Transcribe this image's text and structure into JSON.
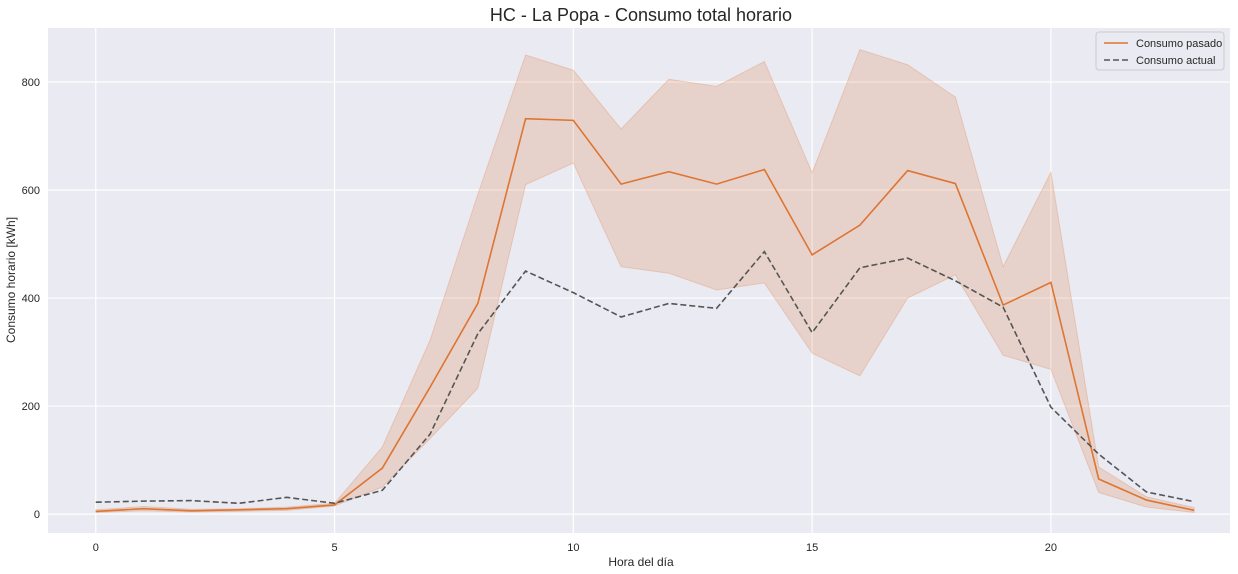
{
  "chart_data": {
    "type": "line",
    "title": "HC - La Popa - Consumo total horario",
    "xlabel": "Hora del día",
    "ylabel": "Consumo horario [kWh]",
    "xlim": [
      -1,
      23.75
    ],
    "ylim": [
      -35,
      900
    ],
    "xticks": [
      0,
      5,
      10,
      15,
      20
    ],
    "yticks": [
      0,
      200,
      400,
      600,
      800
    ],
    "grid": true,
    "legend_position": "top-right",
    "x": [
      0,
      1,
      2,
      3,
      4,
      5,
      6,
      7,
      8,
      9,
      10,
      11,
      12,
      13,
      14,
      15,
      16,
      17,
      18,
      19,
      20,
      21,
      22,
      23
    ],
    "series": [
      {
        "name": "Consumo pasado",
        "style": "solid",
        "color": "#dd7533",
        "values": [
          5,
          10,
          6,
          8,
          10,
          17,
          85,
          235,
          390,
          732,
          729,
          611,
          634,
          611,
          638,
          480,
          535,
          636,
          612,
          387,
          429,
          65,
          26,
          7
        ],
        "band_low": [
          3,
          6,
          4,
          5,
          7,
          15,
          50,
          140,
          233,
          610,
          650,
          458,
          446,
          415,
          428,
          298,
          256,
          400,
          443,
          294,
          268,
          40,
          13,
          3
        ],
        "band_high": [
          8,
          14,
          9,
          10,
          13,
          20,
          124,
          322,
          592,
          850,
          822,
          713,
          805,
          792,
          838,
          632,
          860,
          832,
          772,
          458,
          633,
          87,
          32,
          12
        ]
      },
      {
        "name": "Consumo actual",
        "style": "dashed",
        "color": "#555555",
        "values": [
          22,
          24,
          25,
          20,
          31,
          20,
          44,
          148,
          334,
          450,
          410,
          365,
          390,
          381,
          486,
          336,
          456,
          474,
          432,
          383,
          198,
          111,
          41,
          23
        ]
      }
    ]
  },
  "colors": {
    "plot_background": "#eaeaf2",
    "grid": "#ffffff",
    "band": "#dd7533"
  }
}
